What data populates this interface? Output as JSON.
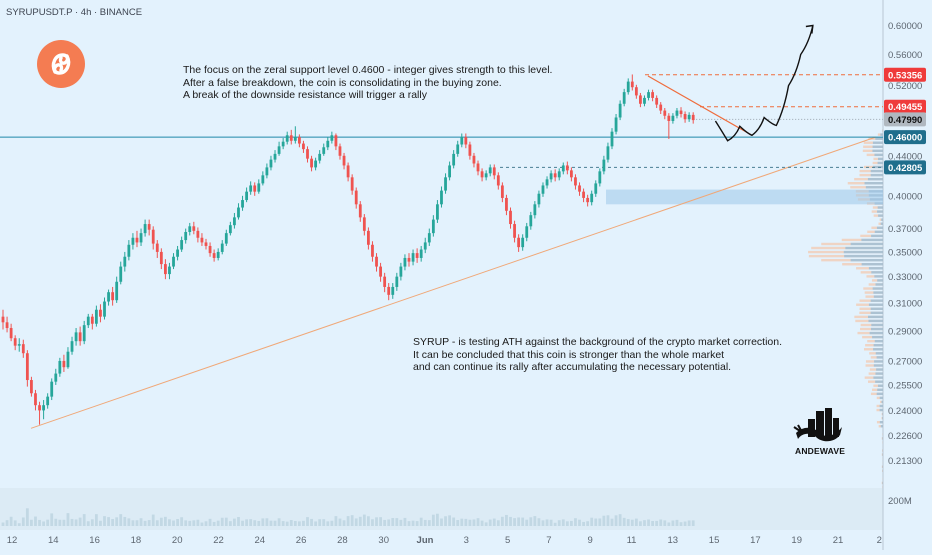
{
  "header": {
    "symbol_line": "SYRUPUSDT.P · 4h · BINANCE"
  },
  "notes": {
    "top": "The focus on the zeral support level 0.4600 - integer gives strength to this level.\nAfter a false breakdown, the coin is consolidating in the buying zone.\nA break of the downside resistance will trigger a rally",
    "bottom": "SYRUP - is testing ATH against the background of the crypto market correction.\nIt can be concluded that this coin is stronger than the whole market\nand can continue its rally after accumulating the necessary potential."
  },
  "watermark": {
    "text": "ANDEWAVE"
  },
  "colors": {
    "background": "#e3f2fd",
    "up_candle": "#26a69a",
    "down_candle": "#ef5350",
    "support_line": "#1e88a8",
    "trendline": "#f0a878",
    "resistance_line": "#ef6c3c",
    "price_badge_red": "#ef3b3b",
    "price_badge_blue": "#1f6e8c",
    "price_badge_gray": "#b0b8c0",
    "volume_bar": "#c2d8e4",
    "logo": "#f47c52"
  },
  "chart_data": {
    "type": "candlestick",
    "symbol": "SYRUPUSDT.P",
    "timeframe": "4h",
    "exchange": "BINANCE",
    "y_axis": {
      "scale": "log",
      "range": [
        0.2,
        0.63
      ],
      "ticks": [
        "0.60000",
        "0.56000",
        "0.52000",
        "0.48000",
        "0.44000",
        "0.40000",
        "0.37000",
        "0.35000",
        "0.33000",
        "0.31000",
        "0.29000",
        "0.27000",
        "0.25500",
        "0.24000",
        "0.22600",
        "0.21300"
      ]
    },
    "x_axis": {
      "ticks": [
        "12",
        "14",
        "16",
        "18",
        "20",
        "22",
        "24",
        "26",
        "28",
        "30",
        "Jun",
        "3",
        "5",
        "7",
        "9",
        "11",
        "13",
        "15",
        "17",
        "19",
        "21",
        "2"
      ]
    },
    "volume_axis_label": "200M",
    "price_labels": [
      {
        "value": "0.53356",
        "style": "red"
      },
      {
        "value": "0.49455",
        "style": "red"
      },
      {
        "value": "0.47990",
        "style": "gray"
      },
      {
        "value": "0.46000",
        "style": "blue"
      },
      {
        "value": "0.42805",
        "style": "blue"
      }
    ],
    "levels": {
      "support": 0.46,
      "local_high": 0.53356,
      "resistance_touch": 0.49455,
      "current_price": 0.4799,
      "lower_level": 0.42805,
      "trendline": {
        "from": [
          0,
          0.23
        ],
        "to": [
          194,
          0.46
        ]
      }
    },
    "candles": [
      [
        0.3,
        0.296,
        0.305,
        0.291
      ],
      [
        0.296,
        0.292,
        0.3,
        0.289
      ],
      [
        0.292,
        0.285,
        0.295,
        0.283
      ],
      [
        0.285,
        0.28,
        0.287,
        0.277
      ],
      [
        0.28,
        0.281,
        0.285,
        0.276
      ],
      [
        0.281,
        0.275,
        0.284,
        0.272
      ],
      [
        0.275,
        0.258,
        0.277,
        0.254
      ],
      [
        0.258,
        0.25,
        0.26,
        0.248
      ],
      [
        0.25,
        0.243,
        0.252,
        0.24
      ],
      [
        0.243,
        0.24,
        0.245,
        0.232
      ],
      [
        0.24,
        0.243,
        0.246,
        0.235
      ],
      [
        0.243,
        0.248,
        0.25,
        0.241
      ],
      [
        0.248,
        0.257,
        0.259,
        0.246
      ],
      [
        0.257,
        0.262,
        0.265,
        0.255
      ],
      [
        0.262,
        0.27,
        0.272,
        0.26
      ],
      [
        0.27,
        0.266,
        0.274,
        0.263
      ],
      [
        0.266,
        0.276,
        0.279,
        0.265
      ],
      [
        0.276,
        0.283,
        0.286,
        0.274
      ],
      [
        0.283,
        0.289,
        0.292,
        0.28
      ],
      [
        0.289,
        0.283,
        0.293,
        0.28
      ],
      [
        0.283,
        0.294,
        0.297,
        0.281
      ],
      [
        0.294,
        0.3,
        0.302,
        0.292
      ],
      [
        0.3,
        0.295,
        0.302,
        0.291
      ],
      [
        0.295,
        0.305,
        0.308,
        0.293
      ],
      [
        0.305,
        0.3,
        0.309,
        0.296
      ],
      [
        0.3,
        0.311,
        0.314,
        0.298
      ],
      [
        0.311,
        0.318,
        0.32,
        0.308
      ],
      [
        0.318,
        0.312,
        0.322,
        0.308
      ],
      [
        0.312,
        0.326,
        0.33,
        0.31
      ],
      [
        0.326,
        0.338,
        0.342,
        0.324
      ],
      [
        0.338,
        0.346,
        0.35,
        0.334
      ],
      [
        0.346,
        0.356,
        0.36,
        0.343
      ],
      [
        0.356,
        0.362,
        0.366,
        0.352
      ],
      [
        0.362,
        0.358,
        0.368,
        0.354
      ],
      [
        0.358,
        0.366,
        0.37,
        0.355
      ],
      [
        0.366,
        0.374,
        0.378,
        0.363
      ],
      [
        0.374,
        0.369,
        0.378,
        0.364
      ],
      [
        0.369,
        0.357,
        0.372,
        0.352
      ],
      [
        0.357,
        0.35,
        0.36,
        0.345
      ],
      [
        0.35,
        0.34,
        0.353,
        0.336
      ],
      [
        0.34,
        0.332,
        0.344,
        0.328
      ],
      [
        0.332,
        0.338,
        0.341,
        0.328
      ],
      [
        0.338,
        0.346,
        0.349,
        0.336
      ],
      [
        0.346,
        0.352,
        0.355,
        0.343
      ],
      [
        0.352,
        0.36,
        0.363,
        0.35
      ],
      [
        0.36,
        0.367,
        0.37,
        0.357
      ],
      [
        0.367,
        0.372,
        0.375,
        0.364
      ],
      [
        0.372,
        0.368,
        0.376,
        0.365
      ],
      [
        0.368,
        0.362,
        0.371,
        0.358
      ],
      [
        0.362,
        0.358,
        0.366,
        0.355
      ],
      [
        0.358,
        0.355,
        0.361,
        0.352
      ],
      [
        0.355,
        0.349,
        0.358,
        0.346
      ],
      [
        0.349,
        0.345,
        0.352,
        0.342
      ],
      [
        0.345,
        0.35,
        0.353,
        0.343
      ],
      [
        0.35,
        0.357,
        0.36,
        0.348
      ],
      [
        0.357,
        0.366,
        0.369,
        0.355
      ],
      [
        0.366,
        0.373,
        0.376,
        0.364
      ],
      [
        0.373,
        0.38,
        0.384,
        0.37
      ],
      [
        0.38,
        0.389,
        0.393,
        0.378
      ],
      [
        0.389,
        0.396,
        0.4,
        0.386
      ],
      [
        0.396,
        0.404,
        0.408,
        0.394
      ],
      [
        0.404,
        0.41,
        0.414,
        0.401
      ],
      [
        0.41,
        0.404,
        0.413,
        0.4
      ],
      [
        0.404,
        0.412,
        0.416,
        0.402
      ],
      [
        0.412,
        0.42,
        0.424,
        0.41
      ],
      [
        0.42,
        0.428,
        0.432,
        0.417
      ],
      [
        0.428,
        0.436,
        0.44,
        0.425
      ],
      [
        0.436,
        0.442,
        0.446,
        0.433
      ],
      [
        0.442,
        0.45,
        0.455,
        0.44
      ],
      [
        0.45,
        0.455,
        0.459,
        0.447
      ],
      [
        0.455,
        0.462,
        0.466,
        0.452
      ],
      [
        0.462,
        0.456,
        0.468,
        0.452
      ],
      [
        0.456,
        0.46,
        0.472,
        0.453
      ],
      [
        0.46,
        0.453,
        0.463,
        0.449
      ],
      [
        0.453,
        0.447,
        0.456,
        0.443
      ],
      [
        0.447,
        0.437,
        0.45,
        0.433
      ],
      [
        0.437,
        0.428,
        0.44,
        0.424
      ],
      [
        0.428,
        0.435,
        0.438,
        0.425
      ],
      [
        0.435,
        0.442,
        0.446,
        0.432
      ],
      [
        0.442,
        0.449,
        0.453,
        0.44
      ],
      [
        0.449,
        0.456,
        0.46,
        0.446
      ],
      [
        0.456,
        0.462,
        0.466,
        0.453
      ],
      [
        0.462,
        0.45,
        0.464,
        0.446
      ],
      [
        0.45,
        0.44,
        0.453,
        0.436
      ],
      [
        0.44,
        0.43,
        0.443,
        0.426
      ],
      [
        0.43,
        0.418,
        0.433,
        0.414
      ],
      [
        0.418,
        0.405,
        0.421,
        0.401
      ],
      [
        0.405,
        0.392,
        0.408,
        0.388
      ],
      [
        0.392,
        0.38,
        0.395,
        0.376
      ],
      [
        0.38,
        0.368,
        0.383,
        0.364
      ],
      [
        0.368,
        0.356,
        0.371,
        0.352
      ],
      [
        0.356,
        0.346,
        0.359,
        0.342
      ],
      [
        0.346,
        0.338,
        0.349,
        0.334
      ],
      [
        0.338,
        0.33,
        0.341,
        0.326
      ],
      [
        0.33,
        0.322,
        0.333,
        0.318
      ],
      [
        0.322,
        0.316,
        0.325,
        0.312
      ],
      [
        0.316,
        0.322,
        0.325,
        0.313
      ],
      [
        0.322,
        0.33,
        0.333,
        0.319
      ],
      [
        0.33,
        0.338,
        0.341,
        0.327
      ],
      [
        0.338,
        0.345,
        0.348,
        0.335
      ],
      [
        0.345,
        0.342,
        0.349,
        0.338
      ],
      [
        0.342,
        0.349,
        0.352,
        0.339
      ],
      [
        0.349,
        0.345,
        0.353,
        0.341
      ],
      [
        0.345,
        0.352,
        0.355,
        0.342
      ],
      [
        0.352,
        0.358,
        0.362,
        0.349
      ],
      [
        0.358,
        0.366,
        0.37,
        0.355
      ],
      [
        0.366,
        0.378,
        0.382,
        0.363
      ],
      [
        0.378,
        0.392,
        0.396,
        0.375
      ],
      [
        0.392,
        0.405,
        0.409,
        0.389
      ],
      [
        0.405,
        0.418,
        0.422,
        0.402
      ],
      [
        0.418,
        0.43,
        0.434,
        0.415
      ],
      [
        0.43,
        0.442,
        0.446,
        0.427
      ],
      [
        0.442,
        0.452,
        0.456,
        0.439
      ],
      [
        0.452,
        0.46,
        0.464,
        0.449
      ],
      [
        0.46,
        0.452,
        0.464,
        0.448
      ],
      [
        0.452,
        0.44,
        0.455,
        0.436
      ],
      [
        0.44,
        0.432,
        0.443,
        0.428
      ],
      [
        0.432,
        0.424,
        0.435,
        0.42
      ],
      [
        0.424,
        0.418,
        0.427,
        0.414
      ],
      [
        0.418,
        0.422,
        0.425,
        0.415
      ],
      [
        0.422,
        0.428,
        0.431,
        0.419
      ],
      [
        0.428,
        0.42,
        0.431,
        0.416
      ],
      [
        0.42,
        0.41,
        0.423,
        0.406
      ],
      [
        0.41,
        0.398,
        0.413,
        0.394
      ],
      [
        0.398,
        0.386,
        0.401,
        0.382
      ],
      [
        0.386,
        0.374,
        0.389,
        0.37
      ],
      [
        0.374,
        0.362,
        0.377,
        0.358
      ],
      [
        0.362,
        0.354,
        0.365,
        0.35
      ],
      [
        0.354,
        0.362,
        0.365,
        0.351
      ],
      [
        0.362,
        0.372,
        0.375,
        0.359
      ],
      [
        0.372,
        0.382,
        0.385,
        0.369
      ],
      [
        0.382,
        0.392,
        0.395,
        0.379
      ],
      [
        0.392,
        0.402,
        0.405,
        0.389
      ],
      [
        0.402,
        0.41,
        0.413,
        0.399
      ],
      [
        0.41,
        0.416,
        0.419,
        0.407
      ],
      [
        0.416,
        0.422,
        0.425,
        0.413
      ],
      [
        0.422,
        0.418,
        0.426,
        0.414
      ],
      [
        0.418,
        0.424,
        0.427,
        0.415
      ],
      [
        0.424,
        0.43,
        0.433,
        0.421
      ],
      [
        0.43,
        0.425,
        0.434,
        0.421
      ],
      [
        0.425,
        0.418,
        0.428,
        0.414
      ],
      [
        0.418,
        0.41,
        0.421,
        0.406
      ],
      [
        0.41,
        0.404,
        0.413,
        0.4
      ],
      [
        0.404,
        0.398,
        0.407,
        0.394
      ],
      [
        0.398,
        0.394,
        0.401,
        0.39
      ],
      [
        0.394,
        0.402,
        0.405,
        0.391
      ],
      [
        0.402,
        0.412,
        0.415,
        0.399
      ],
      [
        0.412,
        0.424,
        0.427,
        0.409
      ],
      [
        0.424,
        0.436,
        0.44,
        0.421
      ],
      [
        0.436,
        0.45,
        0.454,
        0.433
      ],
      [
        0.45,
        0.466,
        0.47,
        0.447
      ],
      [
        0.466,
        0.482,
        0.486,
        0.463
      ],
      [
        0.482,
        0.498,
        0.502,
        0.479
      ],
      [
        0.498,
        0.512,
        0.516,
        0.495
      ],
      [
        0.512,
        0.525,
        0.529,
        0.509
      ],
      [
        0.525,
        0.518,
        0.534,
        0.514
      ],
      [
        0.518,
        0.508,
        0.521,
        0.504
      ],
      [
        0.508,
        0.498,
        0.511,
        0.494
      ],
      [
        0.498,
        0.505,
        0.508,
        0.495
      ],
      [
        0.505,
        0.512,
        0.515,
        0.502
      ],
      [
        0.512,
        0.505,
        0.515,
        0.501
      ],
      [
        0.505,
        0.497,
        0.508,
        0.493
      ],
      [
        0.497,
        0.49,
        0.5,
        0.486
      ],
      [
        0.49,
        0.484,
        0.493,
        0.48
      ],
      [
        0.484,
        0.478,
        0.487,
        0.458
      ],
      [
        0.478,
        0.484,
        0.487,
        0.475
      ],
      [
        0.484,
        0.49,
        0.493,
        0.481
      ],
      [
        0.49,
        0.486,
        0.494,
        0.482
      ],
      [
        0.486,
        0.48,
        0.489,
        0.476
      ],
      [
        0.48,
        0.485,
        0.488,
        0.477
      ],
      [
        0.485,
        0.479,
        0.488,
        0.475
      ]
    ],
    "projection": [
      [
        174,
        0.478
      ],
      [
        177,
        0.456
      ],
      [
        180,
        0.472
      ],
      [
        183,
        0.462
      ],
      [
        186,
        0.482
      ],
      [
        189,
        0.473
      ],
      [
        192,
        0.52
      ],
      [
        195,
        0.56
      ],
      [
        198,
        0.6
      ]
    ],
    "volume_profile_peak": 0.35
  }
}
